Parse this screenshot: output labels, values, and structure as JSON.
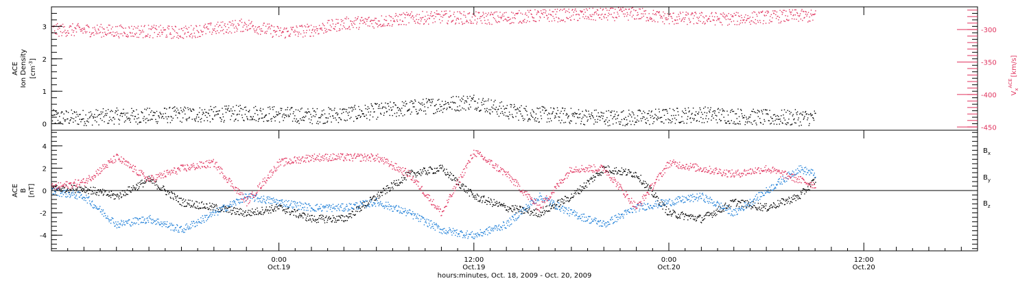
{
  "colors": {
    "pink": "#e0335e",
    "blue": "#1e7fd8",
    "black": "#000000"
  },
  "chart_data": [
    {
      "type": "scatter",
      "panel": "top",
      "left_axis": {
        "label_lines": [
          "ACE",
          "Ion Density"
        ],
        "unit_base": "[cm",
        "unit_sup": "-3",
        "unit_close": "]",
        "ylim": [
          -0.2,
          3.6
        ],
        "ticks": [
          0,
          1,
          2,
          3
        ],
        "tick_labels": [
          "0",
          "1",
          "2",
          "3"
        ]
      },
      "right_axis": {
        "label_main": "V",
        "label_sub": "x",
        "label_sup": "ACE",
        "unit": "[km/s]",
        "ylim": [
          -455,
          -265
        ],
        "ticks": [
          -450,
          -400,
          -350,
          -300
        ],
        "tick_labels": [
          "-450",
          "-400",
          "-350",
          "-300"
        ]
      },
      "series": [
        {
          "color": "#000000",
          "x_hours": [
            0,
            2,
            4,
            6,
            8,
            10,
            12,
            14,
            16,
            18,
            20,
            22,
            24,
            26,
            28,
            30,
            32,
            34,
            36,
            38,
            40,
            42,
            44,
            46,
            47
          ],
          "y": [
            0.2,
            0.2,
            0.25,
            0.25,
            0.3,
            0.3,
            0.35,
            0.3,
            0.25,
            0.3,
            0.4,
            0.5,
            0.6,
            0.7,
            0.4,
            0.3,
            0.25,
            0.2,
            0.2,
            0.25,
            0.3,
            0.25,
            0.2,
            0.2,
            0.2
          ]
        },
        {
          "color": "#e0335e",
          "x_hours": [
            0,
            2,
            4,
            6,
            8,
            10,
            12,
            14,
            16,
            18,
            20,
            22,
            24,
            26,
            28,
            30,
            32,
            34,
            36,
            38,
            40,
            42,
            44,
            46,
            47
          ],
          "y": [
            -300,
            -300,
            -302,
            -302,
            -304,
            -298,
            -292,
            -304,
            -300,
            -290,
            -287,
            -282,
            -280,
            -282,
            -281,
            -278,
            -277,
            -276,
            -275,
            -282,
            -282,
            -283,
            -280,
            -278,
            -279
          ]
        }
      ]
    },
    {
      "type": "scatter",
      "panel": "bottom",
      "left_axis": {
        "label_lines": [
          "ACE",
          "B"
        ],
        "unit": "[nT]",
        "ylim": [
          -5.4,
          5.4
        ],
        "ticks": [
          -4,
          -2,
          0,
          2,
          4
        ],
        "tick_labels": [
          "-4",
          "-2",
          "0",
          "2",
          "4"
        ]
      },
      "legend": {
        "placement": "right",
        "entries": [
          {
            "base": "B",
            "sub": "x",
            "color": "#000000"
          },
          {
            "base": "B",
            "sub": "y",
            "color": "#1e7fd8"
          },
          {
            "base": "B",
            "sub": "z",
            "color": "#e0335e"
          }
        ]
      },
      "zero_line": true,
      "series": [
        {
          "name": "Bx",
          "color": "#000000",
          "x_hours": [
            0,
            2,
            4,
            6,
            8,
            10,
            12,
            14,
            16,
            18,
            20,
            22,
            24,
            26,
            28,
            30,
            32,
            34,
            36,
            38,
            40,
            42,
            44,
            46,
            47
          ],
          "y": [
            0.2,
            0.2,
            -0.5,
            1,
            -1,
            -1.5,
            -2,
            -1.5,
            -2.5,
            -2.5,
            -0.5,
            1.5,
            2,
            -0.5,
            -1.5,
            -2,
            -0.5,
            2,
            1.5,
            -2,
            -2.5,
            -1,
            -1.5,
            -0.5,
            1
          ]
        },
        {
          "name": "By",
          "color": "#1e7fd8",
          "x_hours": [
            0,
            2,
            4,
            6,
            8,
            10,
            12,
            14,
            16,
            18,
            20,
            22,
            24,
            26,
            28,
            30,
            32,
            34,
            36,
            38,
            40,
            42,
            44,
            46,
            47
          ],
          "y": [
            0,
            -0.5,
            -3,
            -2.5,
            -3.5,
            -2,
            -0.5,
            -1,
            -1.5,
            -1.5,
            -1,
            -2,
            -3.5,
            -4,
            -3,
            -0.5,
            -2,
            -3,
            -1.5,
            -1,
            -0.5,
            -2,
            0,
            2,
            1.5
          ]
        },
        {
          "name": "Bz",
          "color": "#e0335e",
          "x_hours": [
            0,
            2,
            4,
            6,
            8,
            10,
            12,
            14,
            16,
            18,
            20,
            22,
            24,
            26,
            28,
            30,
            32,
            34,
            36,
            38,
            40,
            42,
            44,
            46,
            47
          ],
          "y": [
            0.3,
            0.8,
            3,
            1,
            2,
            2.5,
            -1,
            2.5,
            3,
            3,
            3,
            1.5,
            -2,
            3.5,
            1.5,
            -1.5,
            2,
            2,
            -1.5,
            2.5,
            2,
            1.5,
            2,
            1,
            0.5
          ]
        }
      ]
    }
  ],
  "x_axis": {
    "start": "Oct. 18, 2009 10:00",
    "range_hours": [
      0,
      57
    ],
    "ticks_hours": [
      14,
      26,
      38,
      50
    ],
    "tick_time_labels": [
      "0:00",
      "12:00",
      "0:00",
      "12:00"
    ],
    "tick_date_labels": [
      "Oct.19",
      "Oct.19",
      "Oct.20",
      "Oct.20"
    ],
    "title": "hours:minutes, Oct. 18, 2009 - Oct. 20, 2009"
  }
}
